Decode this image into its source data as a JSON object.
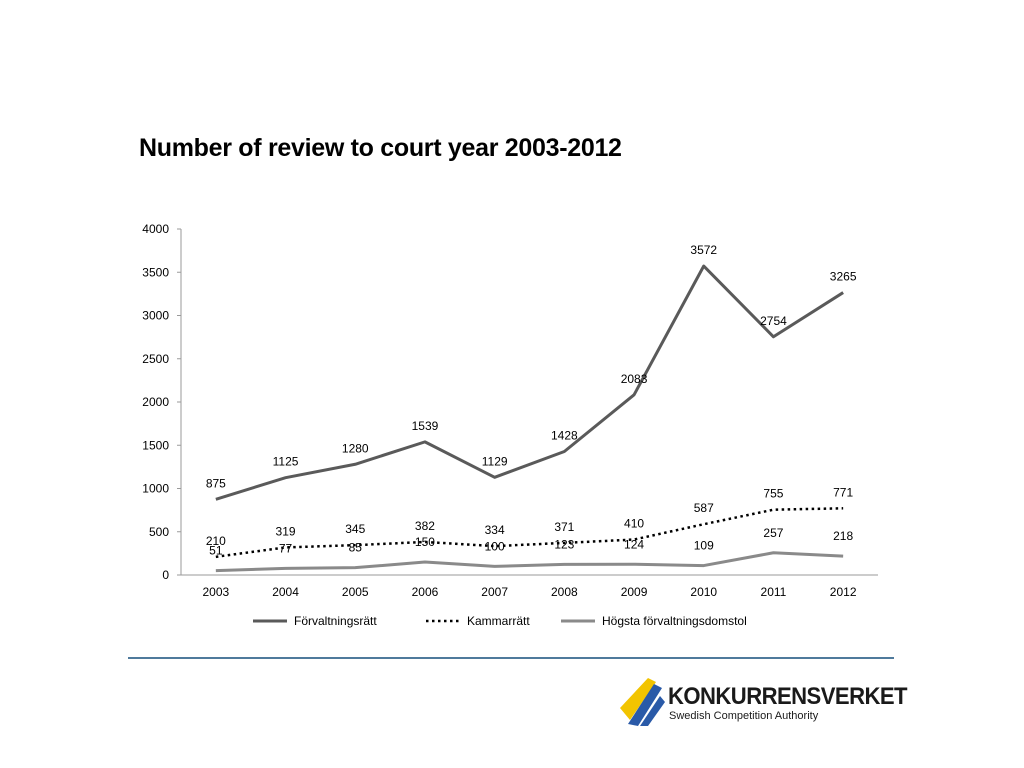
{
  "slide": {
    "title": "Number of review to court year 2003-2012"
  },
  "logo": {
    "name": "KONKURRENSVERKET",
    "subtitle": "Swedish Competition Authority",
    "colors": {
      "blue": "#2a5aa8",
      "yellow": "#f2c400"
    }
  },
  "chart_data": {
    "type": "line",
    "title": "Number of review to court year 2003-2012",
    "xlabel": "",
    "ylabel": "",
    "categories": [
      "2003",
      "2004",
      "2005",
      "2006",
      "2007",
      "2008",
      "2009",
      "2010",
      "2011",
      "2012"
    ],
    "ylim": [
      0,
      4000
    ],
    "yticks": [
      0,
      500,
      1000,
      1500,
      2000,
      2500,
      3000,
      3500,
      4000
    ],
    "grid": false,
    "legend": "bottom",
    "series": [
      {
        "name": "Förvaltningsrätt",
        "values": [
          875,
          1125,
          1280,
          1539,
          1129,
          1428,
          2083,
          3572,
          2754,
          3265
        ],
        "color": "#5a5a5a",
        "style": "solid"
      },
      {
        "name": "Kammarrätt",
        "values": [
          210,
          319,
          345,
          382,
          334,
          371,
          410,
          587,
          755,
          771
        ],
        "color": "#000000",
        "style": "dotted"
      },
      {
        "name": "Högsta förvaltningsdomstol",
        "values": [
          51,
          77,
          85,
          150,
          100,
          123,
          124,
          109,
          257,
          218
        ],
        "color": "#8a8a8a",
        "style": "solid"
      }
    ]
  }
}
